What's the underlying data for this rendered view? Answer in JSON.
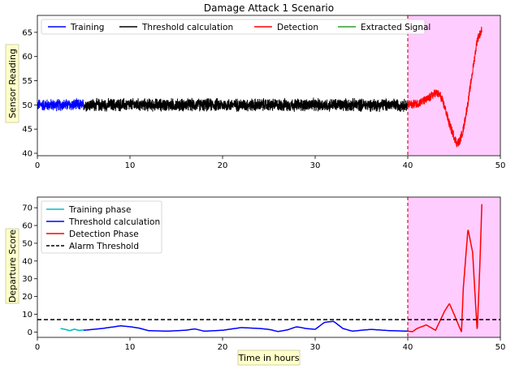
{
  "chart_data": [
    {
      "type": "line",
      "title": "Damage Attack 1 Scenario",
      "xlabel": "",
      "ylabel": "Sensor Reading",
      "xlim": [
        0,
        50
      ],
      "ylim": [
        39.5,
        68.5
      ],
      "xticks": [
        "0",
        "10",
        "20",
        "30",
        "40",
        "50"
      ],
      "yticks": [
        "40",
        "45",
        "50",
        "55",
        "60",
        "65"
      ],
      "xtick_values": [
        0,
        10,
        20,
        30,
        40,
        50
      ],
      "ytick_values": [
        40,
        45,
        50,
        55,
        60,
        65
      ],
      "legend": {
        "placement": "top",
        "columns": 4
      },
      "shaded_region": {
        "x_start": 40,
        "x_end": 50,
        "color": "#ffccff"
      },
      "vline": {
        "x": 40,
        "color": "#d62728",
        "style": "dashed"
      },
      "series": [
        {
          "name": "Training",
          "color": "#0000ff",
          "x_range": [
            0,
            5
          ],
          "center": 50,
          "noise_amplitude": 1.3
        },
        {
          "name": "Threshold calculation",
          "color": "#000000",
          "x_range": [
            5,
            40
          ],
          "center": 50,
          "noise_amplitude": 1.4
        },
        {
          "name": "Detection",
          "color": "#ff0000",
          "x": [
            40,
            41,
            42,
            43,
            43.5,
            44,
            44.5,
            45,
            45.3,
            45.6,
            46,
            46.5,
            47,
            47.5,
            48
          ],
          "y": [
            50,
            50.3,
            51,
            52.5,
            52,
            49.5,
            46,
            43.5,
            42,
            42.5,
            45,
            50.5,
            57,
            63.5,
            65.5
          ],
          "noise_amplitude": 0.9
        },
        {
          "name": "Extracted Signal",
          "color": "#2ca02c",
          "x": [],
          "y": []
        }
      ]
    },
    {
      "type": "line",
      "title": "",
      "xlabel": "Time in hours",
      "ylabel": "Departure Score",
      "xlim": [
        0,
        50
      ],
      "ylim": [
        -3,
        76
      ],
      "xticks": [
        "0",
        "10",
        "20",
        "30",
        "40",
        "50"
      ],
      "yticks": [
        "0",
        "10",
        "20",
        "30",
        "40",
        "50",
        "60",
        "70"
      ],
      "xtick_values": [
        0,
        10,
        20,
        30,
        40,
        50
      ],
      "ytick_values": [
        0,
        10,
        20,
        30,
        40,
        50,
        60,
        70
      ],
      "legend": {
        "placement": "top-left"
      },
      "shaded_region": {
        "x_start": 40,
        "x_end": 50,
        "color": "#ffccff"
      },
      "vline": {
        "x": 40,
        "color": "#d62728",
        "style": "dashed"
      },
      "series": [
        {
          "name": "Training phase",
          "color": "#00bfbf",
          "x": [
            2.5,
            3,
            3.5,
            4,
            4.5,
            5
          ],
          "y": [
            2,
            1.5,
            0.8,
            1.6,
            0.9,
            1.2
          ]
        },
        {
          "name": "Threshold calculation",
          "color": "#0000ff",
          "x": [
            5,
            7,
            9,
            10,
            11,
            12,
            14,
            16,
            17,
            18,
            20,
            22,
            24,
            25,
            26,
            27,
            28,
            29,
            30,
            31,
            32,
            33,
            34,
            36,
            38,
            40
          ],
          "y": [
            1,
            2,
            3.5,
            3,
            2.2,
            0.8,
            0.5,
            1,
            1.8,
            0.5,
            1,
            2.5,
            2,
            1.5,
            0.3,
            1.2,
            3,
            2,
            1.5,
            5.5,
            6,
            2,
            0.5,
            1.5,
            0.8,
            0.5
          ]
        },
        {
          "name": "Detection Phase",
          "color": "#ff0000",
          "x": [
            40,
            40.5,
            41,
            42,
            43,
            44,
            44.5,
            45,
            45.8,
            46,
            46.5,
            47,
            47.5,
            47.8,
            48
          ],
          "y": [
            0.5,
            0.2,
            2,
            4,
            1,
            12,
            16,
            10,
            0,
            25,
            58,
            45,
            0,
            40,
            72
          ]
        },
        {
          "name": "Alarm Threshold",
          "color": "#000000",
          "style": "dashed",
          "constant": 7
        }
      ]
    }
  ]
}
